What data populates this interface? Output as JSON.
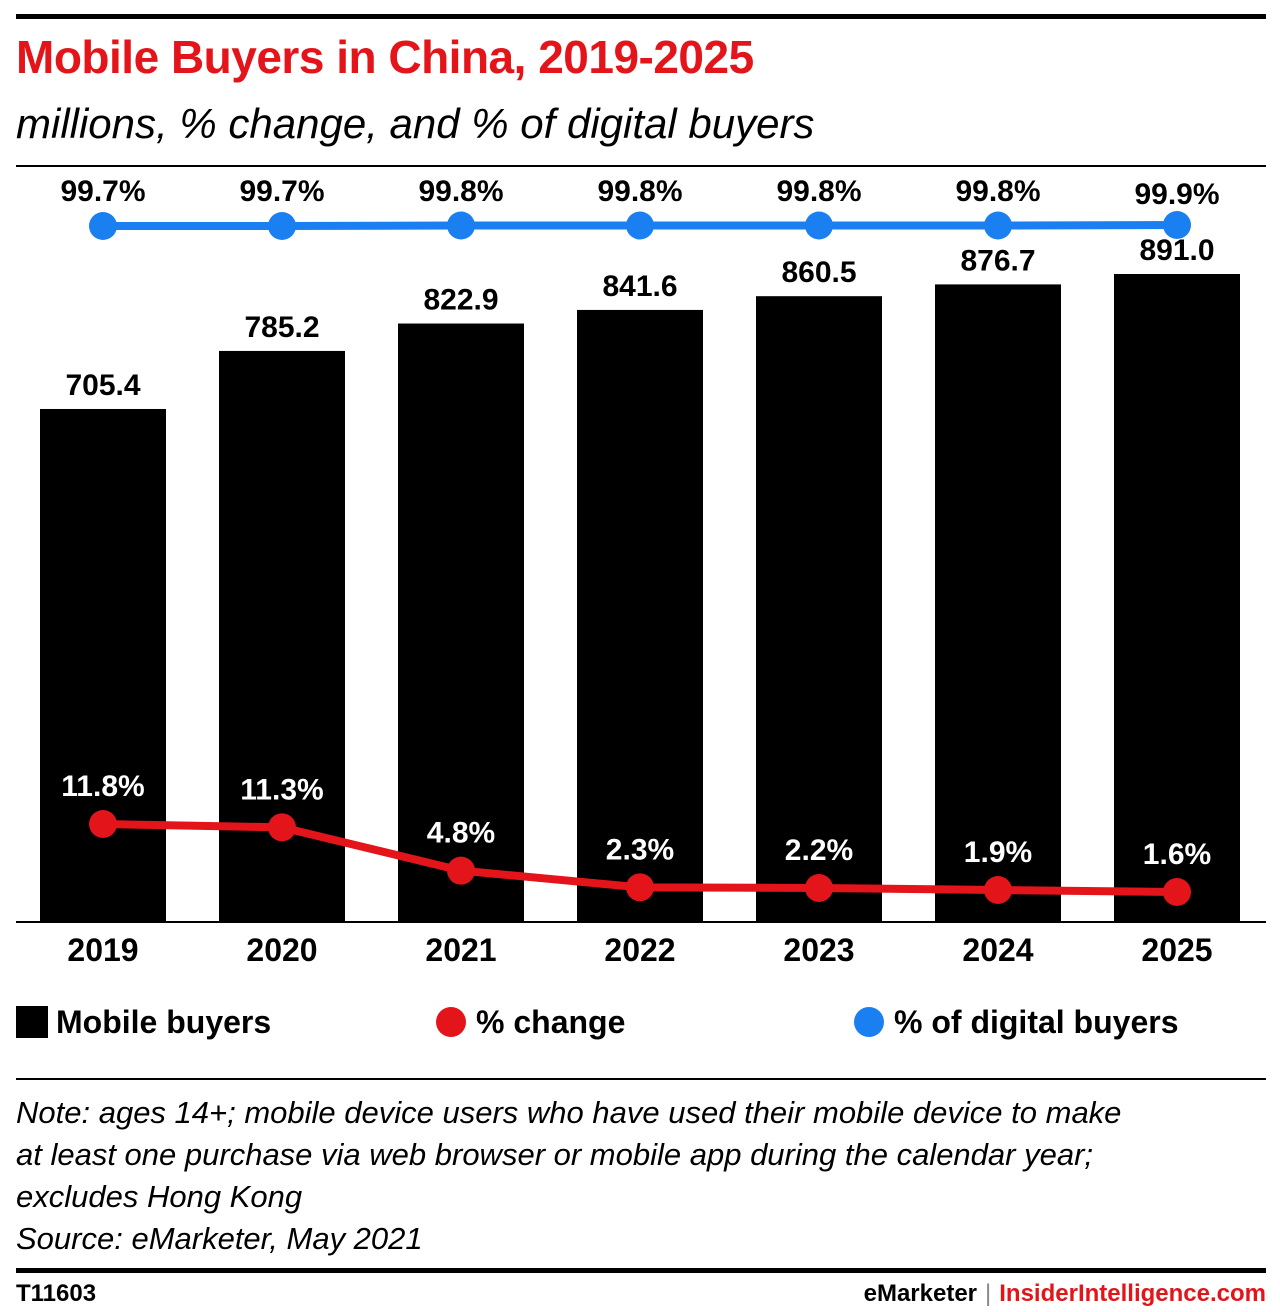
{
  "header": {
    "title": "Mobile Buyers in China, 2019-2025",
    "subtitle": "millions, % change, and % of digital buyers"
  },
  "chart_data": {
    "type": "bar",
    "categories": [
      "2019",
      "2020",
      "2021",
      "2022",
      "2023",
      "2024",
      "2025"
    ],
    "ylim": [
      0,
      1000
    ],
    "grid": false,
    "series": [
      {
        "name": "Mobile buyers",
        "kind": "bar",
        "color": "#000000",
        "values": [
          705.4,
          785.2,
          822.9,
          841.6,
          860.5,
          876.7,
          891.0
        ],
        "labels": [
          "705.4",
          "785.2",
          "822.9",
          "841.6",
          "860.5",
          "876.7",
          "891.0"
        ]
      },
      {
        "name": "% change",
        "kind": "line",
        "color": "#e3151a",
        "values": [
          11.8,
          11.3,
          4.8,
          2.3,
          2.2,
          1.9,
          1.6
        ],
        "labels": [
          "11.8%",
          "11.3%",
          "4.8%",
          "2.3%",
          "2.2%",
          "1.9%",
          "1.6%"
        ]
      },
      {
        "name": "% of digital buyers",
        "kind": "line",
        "color": "#1a7ff0",
        "values": [
          99.7,
          99.7,
          99.8,
          99.8,
          99.8,
          99.8,
          99.9
        ],
        "labels": [
          "99.7%",
          "99.7%",
          "99.8%",
          "99.8%",
          "99.8%",
          "99.8%",
          "99.9%"
        ]
      }
    ],
    "legend_position": "bottom"
  },
  "legend": {
    "bars": "Mobile buyers",
    "change": "% change",
    "digital": "% of digital buyers"
  },
  "note": {
    "line1": "Note: ages 14+; mobile device users who have used their mobile device to make",
    "line2": "at least one purchase via web browser or mobile app during the calendar year;",
    "line3": "excludes Hong Kong",
    "source": "Source: eMarketer, May 2021"
  },
  "footer": {
    "chart_id": "T11603",
    "brand1": "eMarketer",
    "separator": "|",
    "brand2": "InsiderIntelligence.com"
  }
}
